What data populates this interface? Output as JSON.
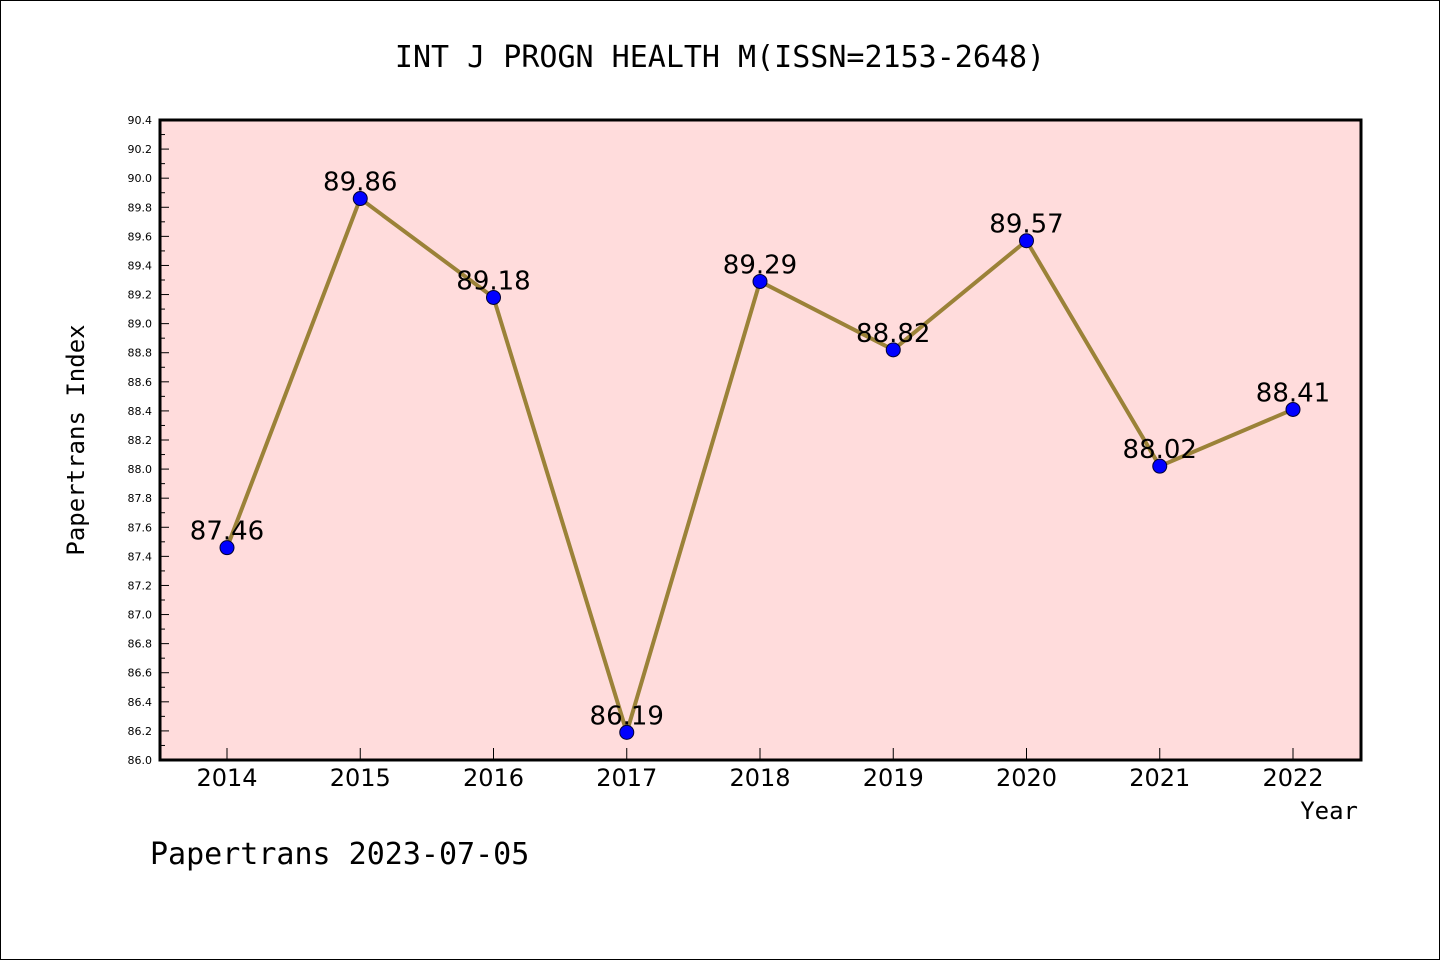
{
  "chart_data": {
    "type": "line",
    "title": "INT J PROGN HEALTH M(ISSN=2153-2648)",
    "xlabel": "Year",
    "ylabel": "Papertrans Index",
    "categories": [
      "2014",
      "2015",
      "2016",
      "2017",
      "2018",
      "2019",
      "2020",
      "2021",
      "2022"
    ],
    "series": [
      {
        "values": [
          87.46,
          89.86,
          89.18,
          86.19,
          89.29,
          88.82,
          89.57,
          88.02,
          88.41
        ],
        "data_labels": [
          "87.46",
          "89.86",
          "89.18",
          "86.19",
          "89.29",
          "88.82",
          "89.57",
          "88.02",
          "88.41"
        ]
      }
    ],
    "ylim": [
      86.0,
      90.4
    ],
    "yticks": [
      "86.0",
      "86.2",
      "86.4",
      "86.6",
      "86.8",
      "87.0",
      "87.2",
      "87.4",
      "87.6",
      "87.8",
      "88.0",
      "88.2",
      "88.4",
      "88.6",
      "88.8",
      "89.0",
      "89.2",
      "89.4",
      "89.6",
      "89.8",
      "90.0",
      "90.2",
      "90.4"
    ],
    "grid": false,
    "legend": "none",
    "colors": {
      "plot_background": "#ffdcdc",
      "line": "#9b8238",
      "marker": "#0000ff"
    }
  },
  "footer": {
    "text": "Papertrans 2023-07-05"
  }
}
